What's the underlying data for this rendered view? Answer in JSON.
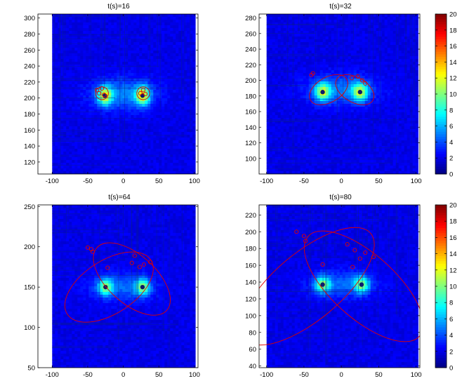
{
  "colorbar": {
    "colormap": "jet",
    "colors": [
      "#00007f",
      "#0000ff",
      "#007fff",
      "#00ffff",
      "#7fff7f",
      "#ffff00",
      "#ff7f00",
      "#ff0000",
      "#7f0000"
    ],
    "range": [
      0,
      20
    ],
    "ticks": [
      0,
      2,
      4,
      6,
      8,
      10,
      12,
      14,
      16,
      18,
      20
    ]
  },
  "marker_color": "#e00000",
  "ellipse_color": "#e00000",
  "chart_data": [
    {
      "type": "heatmap",
      "title": "t(s)=16",
      "xlim": [
        -120,
        105
      ],
      "ylim": [
        105,
        305
      ],
      "xticks": [
        -100,
        -50,
        0,
        50,
        100
      ],
      "yticks": [
        120,
        140,
        160,
        180,
        200,
        220,
        240,
        260,
        280,
        300
      ],
      "field_extent": {
        "x": [
          -100,
          100
        ],
        "y": [
          105,
          305
        ]
      },
      "hotspots": [
        {
          "x": -26,
          "y": 203,
          "sx": 7,
          "sy": 8,
          "peak": 9
        },
        {
          "x": 27,
          "y": 203,
          "sx": 7,
          "sy": 8,
          "peak": 9
        },
        {
          "x": 0,
          "y": 205,
          "sx": 32,
          "sy": 14,
          "peak": 3
        }
      ],
      "markers": [
        {
          "x": -37,
          "y": 210
        },
        {
          "x": -34,
          "y": 206
        },
        {
          "x": -30,
          "y": 212
        },
        {
          "x": -27,
          "y": 204
        },
        {
          "x": 24,
          "y": 206
        },
        {
          "x": 28,
          "y": 210
        },
        {
          "x": 31,
          "y": 205
        }
      ],
      "ellipses": [
        {
          "cx": -30,
          "cy": 206,
          "rx": 9,
          "ry": 8,
          "angle": 20
        },
        {
          "cx": 28,
          "cy": 206,
          "rx": 9,
          "ry": 8,
          "angle": -20
        }
      ]
    },
    {
      "type": "heatmap",
      "title": "t(s)=32",
      "xlim": [
        -110,
        105
      ],
      "ylim": [
        80,
        285
      ],
      "xticks": [
        -100,
        -50,
        0,
        50,
        100
      ],
      "yticks": [
        100,
        120,
        140,
        160,
        180,
        200,
        220,
        240,
        260,
        280
      ],
      "field_extent": {
        "x": [
          -100,
          100
        ],
        "y": [
          80,
          285
        ]
      },
      "hotspots": [
        {
          "x": -25,
          "y": 185,
          "sx": 7,
          "sy": 8,
          "peak": 8
        },
        {
          "x": 25,
          "y": 185,
          "sx": 7,
          "sy": 8,
          "peak": 8
        },
        {
          "x": 0,
          "y": 188,
          "sx": 32,
          "sy": 13,
          "peak": 3
        }
      ],
      "markers": [
        {
          "x": -40,
          "y": 207
        },
        {
          "x": -38,
          "y": 209
        },
        {
          "x": 14,
          "y": 203
        },
        {
          "x": 22,
          "y": 205
        },
        {
          "x": 28,
          "y": 200
        },
        {
          "x": 32,
          "y": 196
        }
      ],
      "ellipses": [
        {
          "cx": -17,
          "cy": 188,
          "rx": 28,
          "ry": 16,
          "angle": 30
        },
        {
          "cx": 18,
          "cy": 188,
          "rx": 28,
          "ry": 16,
          "angle": -30
        }
      ]
    },
    {
      "type": "heatmap",
      "title": "t(s)=64",
      "xlim": [
        -120,
        105
      ],
      "ylim": [
        50,
        252
      ],
      "xticks": [
        -100,
        -50,
        0,
        50,
        100
      ],
      "yticks": [
        50,
        100,
        150,
        200,
        250
      ],
      "field_extent": {
        "x": [
          -100,
          100
        ],
        "y": [
          50,
          252
        ]
      },
      "hotspots": [
        {
          "x": -25,
          "y": 150,
          "sx": 7,
          "sy": 7,
          "peak": 7
        },
        {
          "x": 27,
          "y": 150,
          "sx": 7,
          "sy": 7,
          "peak": 7
        },
        {
          "x": 0,
          "y": 150,
          "sx": 32,
          "sy": 12,
          "peak": 2.5
        }
      ],
      "markers": [
        {
          "x": -50,
          "y": 199
        },
        {
          "x": -45,
          "y": 197
        },
        {
          "x": -43,
          "y": 194
        },
        {
          "x": -22,
          "y": 174
        },
        {
          "x": 12,
          "y": 180
        },
        {
          "x": 16,
          "y": 189
        },
        {
          "x": 23,
          "y": 175
        },
        {
          "x": 29,
          "y": 178
        },
        {
          "x": 38,
          "y": 181
        }
      ],
      "ellipses": [
        {
          "cx": -20,
          "cy": 150,
          "rx": 70,
          "ry": 33,
          "angle": 33
        },
        {
          "cx": 12,
          "cy": 160,
          "rx": 66,
          "ry": 30,
          "angle": -42
        }
      ]
    },
    {
      "type": "heatmap",
      "title": "t(s)=80",
      "xlim": [
        -110,
        105
      ],
      "ylim": [
        38,
        232
      ],
      "xticks": [
        -100,
        -50,
        0,
        50,
        100
      ],
      "yticks": [
        40,
        60,
        80,
        100,
        120,
        140,
        160,
        180,
        200,
        220
      ],
      "field_extent": {
        "x": [
          -100,
          100
        ],
        "y": [
          38,
          232
        ]
      },
      "hotspots": [
        {
          "x": -25,
          "y": 137,
          "sx": 7,
          "sy": 7,
          "peak": 7
        },
        {
          "x": 27,
          "y": 137,
          "sx": 7,
          "sy": 7,
          "peak": 7
        },
        {
          "x": 0,
          "y": 137,
          "sx": 30,
          "sy": 11,
          "peak": 2.5
        }
      ],
      "markers": [
        {
          "x": -60,
          "y": 200
        },
        {
          "x": -50,
          "y": 195
        },
        {
          "x": -48,
          "y": 189
        },
        {
          "x": -25,
          "y": 161
        },
        {
          "x": 8,
          "y": 185
        },
        {
          "x": 15,
          "y": 158
        },
        {
          "x": 18,
          "y": 178
        },
        {
          "x": 25,
          "y": 168
        },
        {
          "x": 32,
          "y": 175
        },
        {
          "x": 43,
          "y": 170
        }
      ],
      "ellipses": [
        {
          "cx": -45,
          "cy": 135,
          "rx": 110,
          "ry": 40,
          "angle": 40
        },
        {
          "cx": 30,
          "cy": 135,
          "rx": 100,
          "ry": 38,
          "angle": -42
        }
      ]
    }
  ]
}
